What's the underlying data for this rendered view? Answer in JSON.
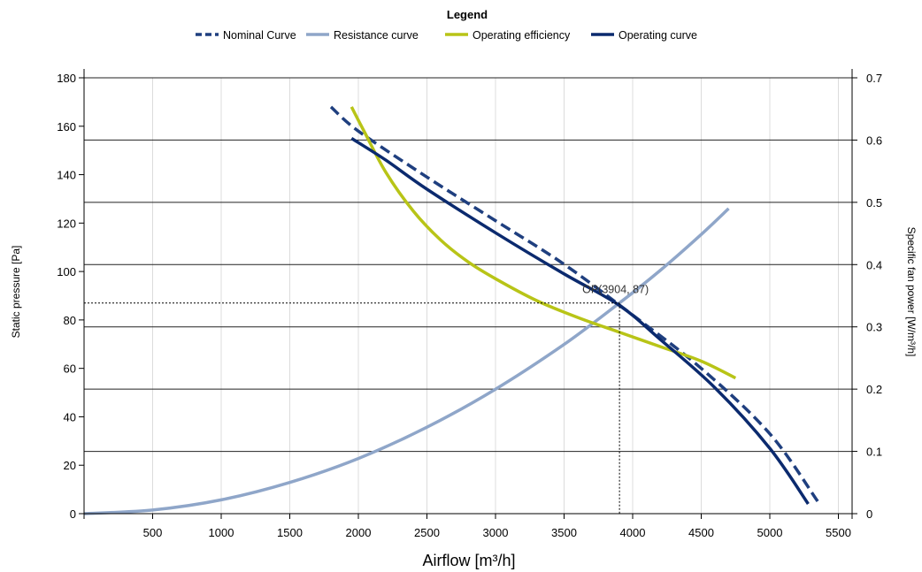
{
  "chart_data": {
    "type": "line",
    "legend": {
      "title": "Legend",
      "placement": "top-center",
      "entries": [
        {
          "name": "Nominal Curve",
          "color": "#1f3f7f",
          "style": "dashed"
        },
        {
          "name": "Resistance curve",
          "color": "#8fa6c9",
          "style": "solid"
        },
        {
          "name": "Operating efficiency",
          "color": "#b8c417",
          "style": "solid"
        },
        {
          "name": "Operating curve",
          "color": "#0b2a6e",
          "style": "solid"
        }
      ]
    },
    "xlabel": "Airflow [m³/h]",
    "ylabel": "Static pressure [Pa]",
    "y2label": "Specific fan power [W/m³/h]",
    "xlim": [
      0,
      5600
    ],
    "ylim": [
      0,
      180
    ],
    "y2lim": [
      0,
      0.7
    ],
    "x_ticks": [
      500,
      1000,
      1500,
      2000,
      2500,
      3000,
      3500,
      4000,
      4500,
      5000,
      5500
    ],
    "y_ticks": [
      0,
      20,
      40,
      60,
      80,
      100,
      120,
      140,
      160,
      180
    ],
    "y2_ticks": [
      "0",
      "0.1",
      "0.2",
      "0.3",
      "0.4",
      "0.5",
      "0.6",
      "0.7"
    ],
    "grid": "vertical lines at x ticks; horizontal lines at secondary-axis ticks",
    "series": [
      {
        "name": "Nominal Curve",
        "axis": "left",
        "color": "#1f3f7f",
        "style": "dashed",
        "x": [
          1800,
          2000,
          2500,
          3000,
          3500,
          4000,
          4500,
          5000,
          5350
        ],
        "y": [
          168,
          158,
          139,
          121,
          103,
          82,
          60,
          33,
          5
        ]
      },
      {
        "name": "Resistance curve",
        "axis": "left",
        "color": "#8fa6c9",
        "style": "solid",
        "x": [
          0,
          500,
          1000,
          1500,
          2000,
          2500,
          3000,
          3500,
          3904,
          4200,
          4500,
          4700
        ],
        "y": [
          0,
          1.5,
          5.7,
          12.9,
          22.8,
          35.7,
          51.4,
          69.9,
          87,
          100.4,
          115.3,
          126
        ]
      },
      {
        "name": "Operating efficiency",
        "axis": "left",
        "color": "#b8c417",
        "style": "solid",
        "x": [
          1950,
          2050,
          2200,
          2400,
          2600,
          2800,
          3000,
          3300,
          3600,
          3900,
          4200,
          4500,
          4750
        ],
        "y": [
          168,
          157,
          141,
          125,
          113,
          104,
          97,
          88,
          81,
          75,
          69,
          63,
          56
        ]
      },
      {
        "name": "Operating curve",
        "axis": "left",
        "color": "#0b2a6e",
        "style": "solid",
        "x": [
          1950,
          2200,
          2500,
          3000,
          3500,
          3904,
          4200,
          4600,
          5000,
          5280
        ],
        "y": [
          155,
          146,
          134,
          116,
          99,
          86,
          72,
          52,
          27,
          4
        ]
      }
    ],
    "annotations": [
      {
        "text": "OP(3904, 87)",
        "x": 3904,
        "y": 87
      }
    ]
  }
}
